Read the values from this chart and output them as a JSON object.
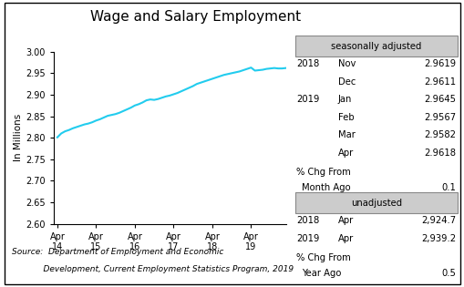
{
  "title": "Wage and Salary Employment",
  "ylabel": "In Millions",
  "line_color": "#22CCEE",
  "line_width": 1.5,
  "ylim": [
    2.6,
    3.0
  ],
  "yticks": [
    2.6,
    2.65,
    2.7,
    2.75,
    2.8,
    2.85,
    2.9,
    2.95,
    3.0
  ],
  "xlabels": [
    "Apr\n14",
    "Apr\n15",
    "Apr\n16",
    "Apr\n17",
    "Apr\n18",
    "Apr\n19"
  ],
  "background_color": "#ffffff",
  "source_line1": "Source:  Department of Employment and Economic",
  "source_line2": "            Development, Current Employment Statistics Program, 2019",
  "seasonally_adjusted_label": "seasonally adjusted",
  "unadjusted_label": "unadjusted",
  "table_data": [
    {
      "year": "2018",
      "month": "Nov",
      "value": "2.9619"
    },
    {
      "year": "",
      "month": "Dec",
      "value": "2.9611"
    },
    {
      "year": "2019",
      "month": "Jan",
      "value": "2.9645"
    },
    {
      "year": "",
      "month": "Feb",
      "value": "2.9567"
    },
    {
      "year": "",
      "month": "Mar",
      "value": "2.9582"
    },
    {
      "year": "",
      "month": "Apr",
      "value": "2.9618"
    }
  ],
  "pct_chg_month_label1": "% Chg From",
  "pct_chg_month_label2": "Month Ago",
  "pct_chg_month": "0.1",
  "unadj_data": [
    {
      "year": "2018",
      "month": "Apr",
      "value": "2,924.7"
    },
    {
      "year": "2019",
      "month": "Apr",
      "value": "2,939.2"
    }
  ],
  "pct_chg_year_label1": "% Chg From",
  "pct_chg_year_label2": "Year Ago",
  "pct_chg_year": "0.5",
  "x_values": [
    0,
    1,
    2,
    3,
    4,
    5,
    6,
    7,
    8,
    9,
    10,
    11,
    12,
    13,
    14,
    15,
    16,
    17,
    18,
    19,
    20,
    21,
    22,
    23,
    24,
    25,
    26,
    27,
    28,
    29,
    30,
    31,
    32,
    33,
    34,
    35,
    36,
    37,
    38,
    39,
    40,
    41,
    42,
    43,
    44,
    45,
    46,
    47,
    48,
    49,
    50,
    51,
    52,
    53,
    54,
    55,
    56,
    57,
    58,
    59
  ],
  "y_values": [
    2.801,
    2.81,
    2.815,
    2.818,
    2.822,
    2.825,
    2.828,
    2.831,
    2.833,
    2.836,
    2.84,
    2.843,
    2.847,
    2.851,
    2.853,
    2.855,
    2.858,
    2.862,
    2.866,
    2.87,
    2.875,
    2.878,
    2.882,
    2.887,
    2.889,
    2.888,
    2.89,
    2.893,
    2.896,
    2.898,
    2.901,
    2.904,
    2.908,
    2.912,
    2.916,
    2.92,
    2.925,
    2.928,
    2.931,
    2.934,
    2.937,
    2.94,
    2.943,
    2.946,
    2.948,
    2.95,
    2.952,
    2.954,
    2.957,
    2.96,
    2.963,
    2.956,
    2.957,
    2.958,
    2.96,
    2.961,
    2.962,
    2.961,
    2.961,
    2.962
  ]
}
